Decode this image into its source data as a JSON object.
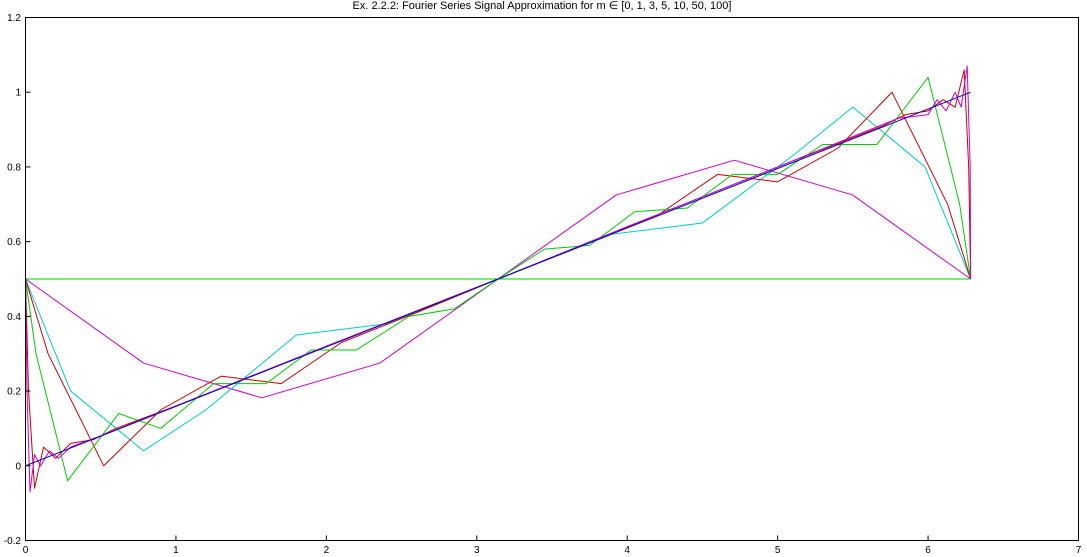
{
  "chart_data": {
    "type": "line",
    "title": "Ex. 2.2.2: Fourier Series Signal Approximation for m ∈ [0, 1, 3, 5, 10, 50, 100]",
    "xlabel": "",
    "ylabel": "",
    "xlim": [
      0,
      7
    ],
    "ylim": [
      -0.2,
      1.2
    ],
    "xticks": [
      0,
      1,
      2,
      3,
      4,
      5,
      6,
      7
    ],
    "yticks": [
      -0.2,
      0,
      0.2,
      0.4,
      0.6,
      0.8,
      1,
      1.2
    ],
    "xtick_labels": [
      "0",
      "1",
      "2",
      "3",
      "4",
      "5",
      "6",
      "7"
    ],
    "ytick_labels": [
      "-0.2",
      "0",
      "0.2",
      "0.4",
      "0.6",
      "0.8",
      "1",
      "1.2"
    ],
    "grid": false,
    "legend": "none",
    "signal": "f(t) = t / (2π) on [0, 2π]",
    "series": [
      {
        "m": 0,
        "color": "#00cc00",
        "x": [
          0,
          6.283
        ],
        "y": [
          0.5,
          0.5
        ]
      },
      {
        "m": 1,
        "color": "#cc00cc",
        "x": [
          0,
          0.785,
          1.571,
          2.356,
          3.142,
          3.927,
          4.712,
          5.498,
          6.283
        ],
        "y": [
          0.5,
          0.275,
          0.182,
          0.275,
          0.5,
          0.725,
          0.818,
          0.725,
          0.5
        ]
      },
      {
        "m": 3,
        "color": "#00cccc",
        "x": [
          0,
          0.3,
          0.785,
          1.2,
          1.8,
          2.4,
          3.142,
          3.9,
          4.5,
          5.1,
          5.5,
          5.98,
          6.283
        ],
        "y": [
          0.5,
          0.2,
          0.04,
          0.15,
          0.35,
          0.38,
          0.5,
          0.62,
          0.65,
          0.83,
          0.96,
          0.8,
          0.5
        ]
      },
      {
        "m": 5,
        "color": "#cc0000",
        "x": [
          0,
          0.15,
          0.52,
          0.9,
          1.3,
          1.7,
          2.1,
          2.6,
          3.142,
          3.7,
          4.2,
          4.6,
          5.0,
          5.4,
          5.76,
          6.13,
          6.283
        ],
        "y": [
          0.5,
          0.3,
          0.0,
          0.15,
          0.24,
          0.22,
          0.33,
          0.41,
          0.5,
          0.59,
          0.67,
          0.78,
          0.76,
          0.85,
          1.0,
          0.7,
          0.5
        ]
      },
      {
        "m": 10,
        "color": "#00cc00",
        "x": [
          0,
          0.07,
          0.28,
          0.62,
          0.9,
          1.25,
          1.6,
          1.9,
          2.2,
          2.55,
          2.85,
          3.142,
          3.45,
          3.75,
          4.05,
          4.4,
          4.7,
          5.0,
          5.3,
          5.66,
          6.0,
          6.21,
          6.283
        ],
        "y": [
          0.5,
          0.3,
          -0.04,
          0.14,
          0.1,
          0.22,
          0.22,
          0.31,
          0.31,
          0.4,
          0.42,
          0.5,
          0.58,
          0.59,
          0.68,
          0.69,
          0.78,
          0.78,
          0.86,
          0.86,
          1.04,
          0.7,
          0.5
        ]
      },
      {
        "m": 50,
        "color": "#cc0000",
        "x": [
          0,
          0.02,
          0.06,
          0.12,
          0.2,
          0.3,
          0.45,
          0.6,
          1.0,
          2.0,
          3.142,
          4.0,
          5.0,
          5.7,
          5.85,
          6.0,
          6.1,
          6.18,
          6.24,
          6.27,
          6.283
        ],
        "y": [
          0.5,
          0.2,
          -0.06,
          0.05,
          0.02,
          0.06,
          0.07,
          0.1,
          0.16,
          0.32,
          0.5,
          0.64,
          0.8,
          0.91,
          0.94,
          0.95,
          0.98,
          0.96,
          1.06,
          0.8,
          0.5
        ]
      },
      {
        "m": 100,
        "color": "#cc00cc",
        "x": [
          0,
          0.01,
          0.03,
          0.06,
          0.1,
          0.16,
          0.22,
          0.3,
          0.5,
          1.0,
          2.0,
          3.142,
          4.0,
          5.0,
          5.8,
          6.0,
          6.06,
          6.12,
          6.18,
          6.22,
          6.26,
          6.28,
          6.283
        ],
        "y": [
          0.5,
          0.2,
          -0.07,
          0.03,
          0.0,
          0.04,
          0.02,
          0.05,
          0.08,
          0.16,
          0.32,
          0.5,
          0.64,
          0.8,
          0.93,
          0.94,
          0.98,
          0.95,
          1.0,
          0.96,
          1.07,
          0.8,
          0.5
        ]
      },
      {
        "m": "signal",
        "color": "#0000cc",
        "x": [
          0,
          6.283
        ],
        "y": [
          0,
          1
        ]
      }
    ]
  }
}
